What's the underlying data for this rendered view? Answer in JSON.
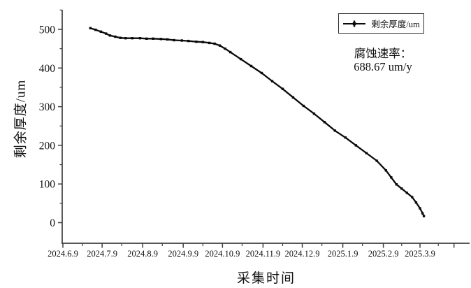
{
  "chart_data": {
    "type": "line",
    "title": "",
    "xlabel": "采集时间",
    "ylabel": "剩余厚度/um",
    "legend": {
      "position": "top-right",
      "entries": [
        {
          "label": "剩余厚度/um",
          "marker": "plus-on-line"
        }
      ]
    },
    "annotation": {
      "line1": "腐蚀速率：",
      "line2": "688.67 um/y"
    },
    "colors": {
      "axis": "#3f3f3f",
      "line": "#0a0a0a",
      "text": "#111111",
      "background": "#ffffff"
    },
    "grid": false,
    "x_axis": {
      "start_date": "2024-06-09",
      "ticks": [
        {
          "label": "2024.6.9",
          "date": "2024-06-09"
        },
        {
          "label": "2024.7.9",
          "date": "2024-07-09"
        },
        {
          "label": "2024.8.9",
          "date": "2024-08-09"
        },
        {
          "label": "2024.9.9",
          "date": "2024-09-09"
        },
        {
          "label": "2024.10.9",
          "date": "2024-10-09"
        },
        {
          "label": "2024.11.9",
          "date": "2024-11-09"
        },
        {
          "label": "2024.12.9",
          "date": "2024-12-09"
        },
        {
          "label": "2025.1.9",
          "date": "2025-01-09"
        },
        {
          "label": "2025.2.9",
          "date": "2025-02-09"
        },
        {
          "label": "2025.3.9",
          "date": "2025-03-09"
        }
      ],
      "minor_tick_days": [
        15,
        45,
        76,
        107,
        137,
        168,
        198,
        229,
        259,
        287
      ],
      "extra_major_tick_days": [
        299
      ]
    },
    "y_axis": {
      "ticks": [
        0,
        100,
        200,
        300,
        400,
        500
      ],
      "minor_ticks": [
        50,
        150,
        250,
        350,
        450,
        550
      ],
      "range": [
        -53,
        550
      ]
    },
    "series": [
      {
        "name": "剩余厚度/um",
        "color": "#0a0a0a",
        "points": [
          [
            "2024-06-30",
            503
          ],
          [
            "2024-07-04",
            499
          ],
          [
            "2024-07-08",
            494
          ],
          [
            "2024-07-12",
            489
          ],
          [
            "2024-07-15",
            484
          ],
          [
            "2024-07-19",
            481
          ],
          [
            "2024-07-23",
            478
          ],
          [
            "2024-07-27",
            477
          ],
          [
            "2024-08-01",
            477
          ],
          [
            "2024-08-07",
            477
          ],
          [
            "2024-08-12",
            476
          ],
          [
            "2024-08-17",
            476
          ],
          [
            "2024-08-23",
            475
          ],
          [
            "2024-08-28",
            474
          ],
          [
            "2024-09-02",
            472
          ],
          [
            "2024-09-08",
            471
          ],
          [
            "2024-09-13",
            470
          ],
          [
            "2024-09-19",
            468
          ],
          [
            "2024-09-24",
            467
          ],
          [
            "2024-09-29",
            465
          ],
          [
            "2024-10-03",
            463
          ],
          [
            "2024-10-07",
            458
          ],
          [
            "2024-10-11",
            450
          ],
          [
            "2024-10-15",
            441
          ],
          [
            "2024-10-23",
            423
          ],
          [
            "2024-10-31",
            405
          ],
          [
            "2024-11-08",
            387
          ],
          [
            "2024-11-16",
            366
          ],
          [
            "2024-11-24",
            346
          ],
          [
            "2024-12-02",
            324
          ],
          [
            "2024-12-10",
            302
          ],
          [
            "2024-12-18",
            282
          ],
          [
            "2024-12-26",
            260
          ],
          [
            "2025-01-03",
            238
          ],
          [
            "2025-01-11",
            220
          ],
          [
            "2025-01-19",
            200
          ],
          [
            "2025-01-27",
            180
          ],
          [
            "2025-02-04",
            160
          ],
          [
            "2025-02-11",
            135
          ],
          [
            "2025-02-15",
            117
          ],
          [
            "2025-02-19",
            99
          ],
          [
            "2025-02-23",
            88
          ],
          [
            "2025-02-27",
            77
          ],
          [
            "2025-03-03",
            66
          ],
          [
            "2025-03-06",
            52
          ],
          [
            "2025-03-09",
            37
          ],
          [
            "2025-03-11",
            24
          ],
          [
            "2025-03-12",
            17
          ]
        ]
      }
    ]
  }
}
